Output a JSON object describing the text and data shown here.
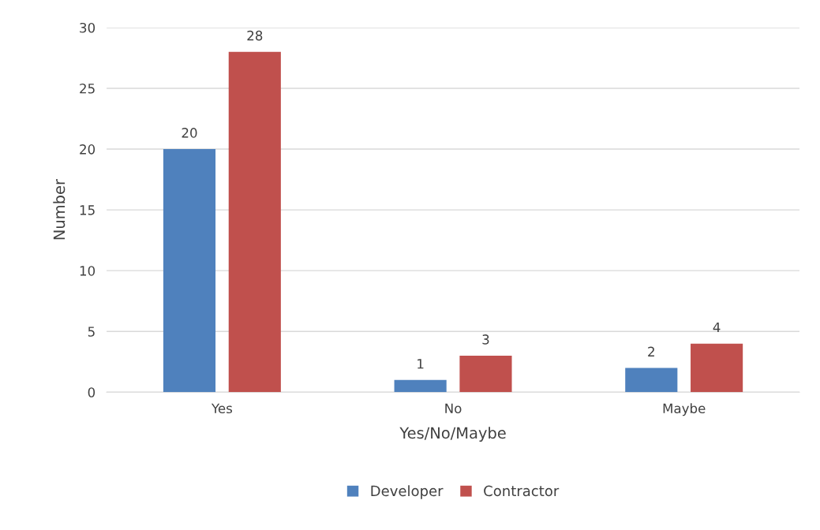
{
  "chart_data": {
    "type": "bar",
    "xlabel": "Yes/No/Maybe",
    "ylabel": "Number",
    "categories": [
      "Yes",
      "No",
      "Maybe"
    ],
    "series": [
      {
        "name": "Developer",
        "color": "#4f81bd",
        "values": [
          20,
          1,
          2
        ]
      },
      {
        "name": "Contractor",
        "color": "#c0504d",
        "values": [
          28,
          3,
          4
        ]
      }
    ],
    "ylim": [
      0,
      30
    ],
    "yticks": [
      0,
      5,
      10,
      15,
      20,
      25,
      30
    ],
    "grid": "y",
    "legend": "bottom",
    "data_labels": true
  }
}
